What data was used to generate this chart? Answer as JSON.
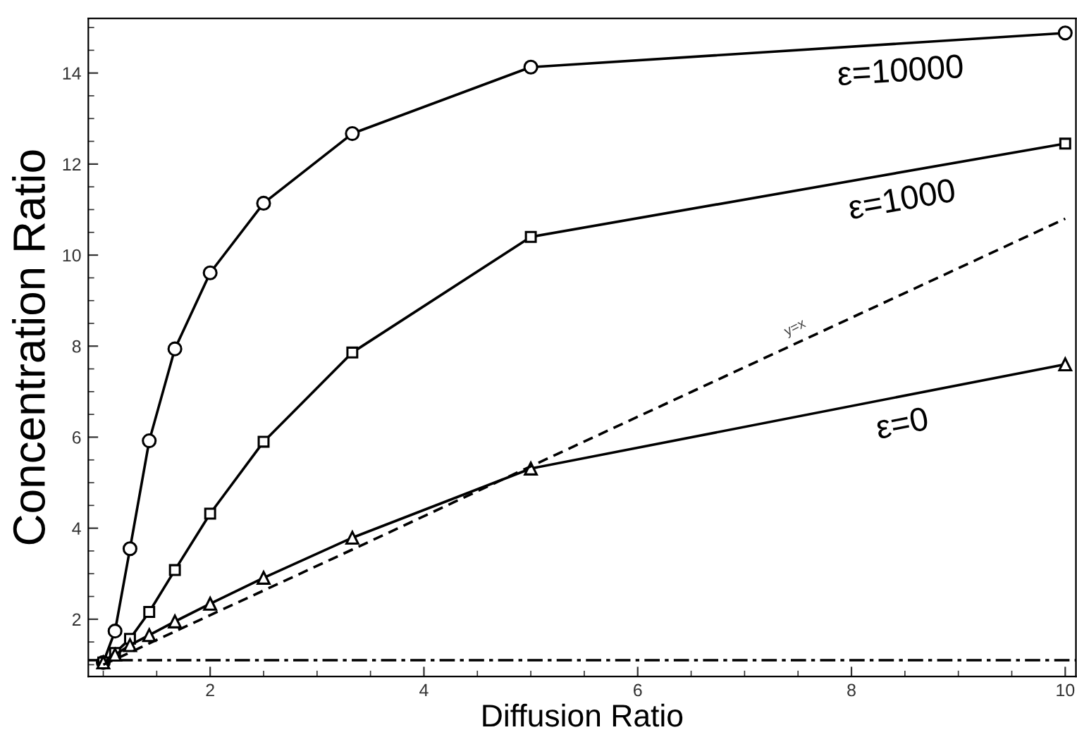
{
  "chart_data": {
    "type": "line",
    "xlabel": "Diffusion Ratio",
    "ylabel": "Concentration Ratio",
    "x": [
      1,
      1.11,
      1.25,
      1.43,
      1.67,
      2,
      2.5,
      3.33,
      5,
      10
    ],
    "series": [
      {
        "name": "ε=10000",
        "color": "#000000",
        "marker": "circle",
        "values": [
          1.05,
          1.74,
          3.55,
          5.92,
          7.94,
          9.61,
          11.14,
          12.67,
          14.13,
          14.88
        ]
      },
      {
        "name": "ε=1000",
        "color": "#000000",
        "marker": "square",
        "values": [
          1.05,
          1.26,
          1.57,
          2.16,
          3.08,
          4.32,
          5.9,
          7.86,
          10.4,
          12.45
        ]
      },
      {
        "name": "ε=0",
        "color": "#000000",
        "marker": "triangle",
        "values": [
          1.05,
          1.22,
          1.43,
          1.65,
          1.95,
          2.34,
          2.91,
          3.79,
          5.31,
          7.6
        ]
      },
      {
        "color": "#000000",
        "marker": "none",
        "line_style": "dashed",
        "values": [
          1.0,
          1.12,
          1.27,
          1.47,
          1.73,
          2.09,
          2.63,
          3.53,
          5.36,
          10.8
        ]
      }
    ],
    "ref_lines": [
      {
        "axis": "y",
        "value": 1.1,
        "color": "#000000",
        "line_style": "dashdot"
      }
    ],
    "xlim": [
      0.86,
      10.1
    ],
    "ylim": [
      0.74,
      15.2
    ],
    "xticks": [
      2,
      4,
      6,
      8,
      10
    ],
    "yticks": [
      2,
      4,
      6,
      8,
      10,
      12,
      14
    ],
    "annotations": [
      {
        "text": "y=x",
        "x": 7.5,
        "y": 8.1
      }
    ],
    "grid": false,
    "legend": false,
    "line_style": "solid"
  }
}
